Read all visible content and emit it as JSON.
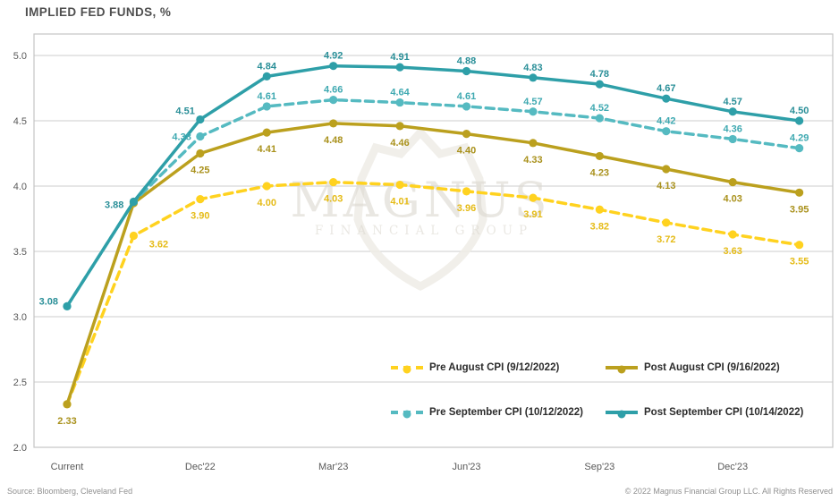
{
  "title": "IMPLIED FED FUNDS, %",
  "footer": {
    "source": "Source: Bloomberg, Cleveland Fed",
    "copyright": "© 2022 Magnus Financial Group LLC. All Rights Reserved"
  },
  "watermark": {
    "line1": "MAGNUS",
    "line2": "FINANCIAL GROUP"
  },
  "colors": {
    "background": "#ffffff",
    "grid": "#cccccc",
    "plot_border": "#c4c4c4",
    "axis_text": "#595959",
    "title_text": "#4f4f4f",
    "legend_text": "#2b2b2b",
    "watermark": "#dcd8d0",
    "watermark_outline": "#efece6"
  },
  "legend": {
    "position": "inside-bottom-right",
    "items": [
      {
        "label": "Pre August CPI (9/12/2022)",
        "color": "#FFD21F",
        "dash": true
      },
      {
        "label": "Post August CPI (9/16/2022)",
        "color": "#BBA01E",
        "dash": false
      },
      {
        "label": "Pre September CPI (10/12/2022)",
        "color": "#55BAC1",
        "dash": true
      },
      {
        "label": "Post September CPI (10/14/2022)",
        "color": "#2E9FA8",
        "dash": false
      }
    ]
  },
  "chart_data": {
    "type": "line",
    "title": "IMPLIED FED FUNDS, %",
    "xlabel": "",
    "ylabel": "Implied Fed Funds, %",
    "grid": "horizontal",
    "ylim": [
      2.0,
      5.17
    ],
    "y_ticks": [
      2.0,
      2.5,
      3.0,
      3.5,
      4.0,
      4.5,
      5.0
    ],
    "n_points": 12,
    "x_tick_labels": [
      "Current",
      "Dec'22",
      "Mar'23",
      "Jun'23",
      "Sep'23",
      "Dec'23"
    ],
    "x_tick_indices": [
      0,
      2,
      4,
      6,
      8,
      10
    ],
    "series": [
      {
        "name": "Pre August CPI (9/12/2022)",
        "color": "#FFD21F",
        "label_color": "#E5BB17",
        "dash": true,
        "label_side": "below",
        "values": [
          2.33,
          3.62,
          3.9,
          4.0,
          4.03,
          4.01,
          3.96,
          3.91,
          3.82,
          3.72,
          3.63,
          3.55
        ],
        "labels": [
          null,
          "3.62",
          "3.90",
          "4.00",
          "4.03",
          "4.01",
          "3.96",
          "3.91",
          "3.82",
          "3.72",
          "3.63",
          "3.55"
        ],
        "label_offsets": {
          "1": [
            28,
            9
          ]
        }
      },
      {
        "name": "Post August CPI (9/16/2022)",
        "color": "#BBA01E",
        "label_color": "#A9911C",
        "dash": false,
        "label_side": "below",
        "values": [
          2.33,
          3.87,
          4.25,
          4.41,
          4.48,
          4.46,
          4.4,
          4.33,
          4.23,
          4.13,
          4.03,
          3.95
        ],
        "labels": [
          "2.33",
          null,
          "4.25",
          "4.41",
          "4.48",
          "4.46",
          "4.40",
          "4.33",
          "4.23",
          "4.13",
          "4.03",
          "3.95"
        ],
        "label_offsets": {}
      },
      {
        "name": "Pre September CPI (10/12/2022)",
        "color": "#55BAC1",
        "label_color": "#3FA9B1",
        "dash": true,
        "label_side": "above",
        "values": [
          3.08,
          3.88,
          4.38,
          4.61,
          4.66,
          4.64,
          4.61,
          4.57,
          4.52,
          4.42,
          4.36,
          4.29
        ],
        "labels": [
          null,
          null,
          "4.38",
          "4.61",
          "4.66",
          "4.64",
          "4.61",
          "4.57",
          "4.52",
          "4.42",
          "4.36",
          "4.29"
        ],
        "label_offsets": {
          "2": [
            -10,
            0,
            "end"
          ]
        }
      },
      {
        "name": "Post September CPI (10/14/2022)",
        "color": "#2E9FA8",
        "label_color": "#2A8F98",
        "dash": false,
        "label_side": "above",
        "values": [
          3.08,
          3.88,
          4.51,
          4.84,
          4.92,
          4.91,
          4.88,
          4.83,
          4.78,
          4.67,
          4.57,
          4.5
        ],
        "labels": [
          "3.08",
          "3.88",
          "4.51",
          "4.84",
          "4.92",
          "4.91",
          "4.88",
          "4.83",
          "4.78",
          "4.67",
          "4.57",
          "4.50"
        ],
        "label_offsets": {
          "0": [
            -10,
            -6,
            "end"
          ],
          "1": [
            -11,
            3,
            "end"
          ],
          "2": [
            -6,
            -10,
            "end"
          ]
        }
      }
    ]
  }
}
